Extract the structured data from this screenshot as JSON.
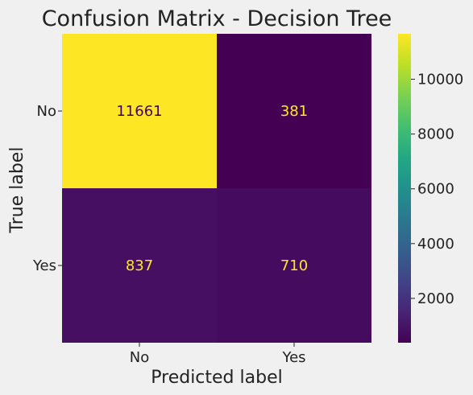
{
  "chart_data": {
    "type": "heatmap",
    "title": "Confusion Matrix - Decision Tree",
    "xlabel": "Predicted label",
    "ylabel": "True label",
    "x_categories": [
      "No",
      "Yes"
    ],
    "y_categories": [
      "No",
      "Yes"
    ],
    "values": [
      [
        11661,
        381
      ],
      [
        837,
        710
      ]
    ],
    "colormap": "viridis",
    "colorbar": {
      "ticks": [
        2000,
        4000,
        6000,
        8000,
        10000
      ],
      "range": [
        381,
        11661
      ]
    },
    "grid": false
  },
  "colors": {
    "background": "#f0f0f0",
    "cell_text_on_dark": "#fde725",
    "cell_text_on_light": "#440154"
  }
}
